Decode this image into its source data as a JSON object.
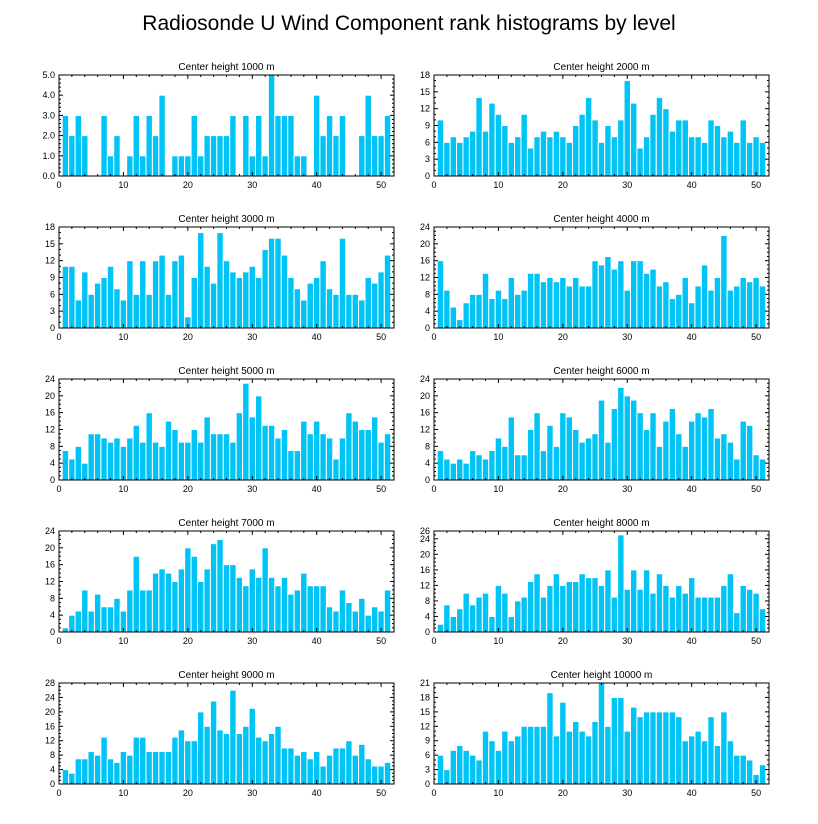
{
  "title": "Radiosonde U Wind Component rank histograms by level",
  "colors": {
    "bar": "#00c4f5",
    "bar_edge": "#ffffff",
    "axis": "#000000",
    "background": "#ffffff"
  },
  "chart_data": [
    {
      "type": "bar",
      "title": "Center height 1000 m",
      "xlim": [
        0,
        52
      ],
      "ylim": [
        0,
        5
      ],
      "xticks": [
        0,
        10,
        20,
        30,
        40,
        50
      ],
      "yticks": [
        0,
        1,
        2,
        3,
        4,
        5
      ],
      "ytick_labels": [
        "0.0",
        "1.0",
        "2.0",
        "3.0",
        "4.0",
        "5.0"
      ],
      "values": [
        3,
        2,
        3,
        2,
        0,
        0,
        3,
        1,
        2,
        0,
        1,
        3,
        1,
        3,
        2,
        4,
        0,
        1,
        1,
        1,
        3,
        1,
        2,
        2,
        2,
        2,
        3,
        0,
        3,
        1,
        3,
        1,
        5,
        3,
        3,
        3,
        1,
        1,
        0,
        4,
        2,
        3,
        2,
        3,
        0,
        0,
        2,
        4,
        2,
        2,
        3
      ]
    },
    {
      "type": "bar",
      "title": "Center height 2000 m",
      "xlim": [
        0,
        52
      ],
      "ylim": [
        0,
        18
      ],
      "xticks": [
        0,
        10,
        20,
        30,
        40,
        50
      ],
      "yticks": [
        0,
        3,
        6,
        9,
        12,
        15,
        18
      ],
      "ytick_labels": [
        "0",
        "3",
        "6",
        "9",
        "12",
        "15",
        "18"
      ],
      "values": [
        10,
        6,
        7,
        6,
        7,
        8,
        14,
        8,
        13,
        11,
        9,
        6,
        7,
        11,
        5,
        7,
        8,
        7,
        8,
        7,
        6,
        9,
        11,
        14,
        10,
        6,
        9,
        7,
        10,
        17,
        13,
        5,
        7,
        11,
        14,
        12,
        8,
        10,
        10,
        7,
        7,
        6,
        10,
        9,
        7,
        8,
        6,
        10,
        6,
        7,
        6
      ]
    },
    {
      "type": "bar",
      "title": "Center height 3000 m",
      "xlim": [
        0,
        52
      ],
      "ylim": [
        0,
        18
      ],
      "xticks": [
        0,
        10,
        20,
        30,
        40,
        50
      ],
      "yticks": [
        0,
        3,
        6,
        9,
        12,
        15,
        18
      ],
      "ytick_labels": [
        "0",
        "3",
        "6",
        "9",
        "12",
        "15",
        "18"
      ],
      "values": [
        11,
        11,
        5,
        10,
        6,
        8,
        9,
        11,
        7,
        5,
        12,
        6,
        12,
        6,
        12,
        13,
        6,
        12,
        13,
        2,
        9,
        17,
        11,
        8,
        17,
        12,
        10,
        9,
        10,
        11,
        9,
        14,
        16,
        16,
        13,
        9,
        7,
        5,
        8,
        9,
        12,
        7,
        6,
        16,
        6,
        6,
        5,
        9,
        8,
        10,
        13
      ]
    },
    {
      "type": "bar",
      "title": "Center height 4000 m",
      "xlim": [
        0,
        52
      ],
      "ylim": [
        0,
        24
      ],
      "xticks": [
        0,
        10,
        20,
        30,
        40,
        50
      ],
      "yticks": [
        0,
        4,
        8,
        12,
        16,
        20,
        24
      ],
      "ytick_labels": [
        "0",
        "4",
        "8",
        "12",
        "16",
        "20",
        "24"
      ],
      "values": [
        16,
        9,
        5,
        2,
        6,
        8,
        8,
        13,
        7,
        9,
        7,
        12,
        8,
        9,
        13,
        13,
        11,
        12,
        11,
        12,
        10,
        12,
        10,
        10,
        16,
        15,
        17,
        14,
        16,
        9,
        16,
        16,
        13,
        14,
        10,
        11,
        7,
        8,
        12,
        6,
        10,
        15,
        9,
        12,
        22,
        9,
        10,
        12,
        11,
        12,
        10
      ]
    },
    {
      "type": "bar",
      "title": "Center height 5000 m",
      "xlim": [
        0,
        52
      ],
      "ylim": [
        0,
        24
      ],
      "xticks": [
        0,
        10,
        20,
        30,
        40,
        50
      ],
      "yticks": [
        0,
        4,
        8,
        12,
        16,
        20,
        24
      ],
      "ytick_labels": [
        "0",
        "4",
        "8",
        "12",
        "16",
        "20",
        "24"
      ],
      "values": [
        7,
        5,
        8,
        4,
        11,
        11,
        10,
        9,
        10,
        8,
        10,
        13,
        9,
        16,
        9,
        8,
        14,
        12,
        9,
        9,
        12,
        9,
        15,
        11,
        11,
        11,
        9,
        16,
        23,
        15,
        20,
        13,
        13,
        10,
        12,
        7,
        7,
        14,
        11,
        14,
        11,
        10,
        5,
        10,
        16,
        14,
        12,
        12,
        15,
        9,
        11
      ]
    },
    {
      "type": "bar",
      "title": "Center height 6000 m",
      "xlim": [
        0,
        52
      ],
      "ylim": [
        0,
        24
      ],
      "xticks": [
        0,
        10,
        20,
        30,
        40,
        50
      ],
      "yticks": [
        0,
        4,
        8,
        12,
        16,
        20,
        24
      ],
      "ytick_labels": [
        "0",
        "4",
        "8",
        "12",
        "16",
        "20",
        "24"
      ],
      "values": [
        7,
        5,
        4,
        5,
        4,
        7,
        6,
        5,
        7,
        10,
        8,
        15,
        6,
        6,
        12,
        16,
        7,
        13,
        8,
        16,
        15,
        12,
        9,
        10,
        11,
        19,
        9,
        17,
        22,
        20,
        19,
        16,
        12,
        16,
        8,
        14,
        17,
        11,
        8,
        14,
        16,
        15,
        17,
        10,
        11,
        9,
        5,
        14,
        13,
        6,
        5
      ]
    },
    {
      "type": "bar",
      "title": "Center height 7000 m",
      "xlim": [
        0,
        52
      ],
      "ylim": [
        0,
        24
      ],
      "xticks": [
        0,
        10,
        20,
        30,
        40,
        50
      ],
      "yticks": [
        0,
        4,
        8,
        12,
        16,
        20,
        24
      ],
      "ytick_labels": [
        "0",
        "4",
        "8",
        "12",
        "16",
        "20",
        "24"
      ],
      "values": [
        1,
        4,
        5,
        10,
        5,
        9,
        6,
        6,
        8,
        5,
        10,
        18,
        10,
        10,
        14,
        15,
        14,
        12,
        15,
        20,
        18,
        12,
        15,
        21,
        22,
        16,
        16,
        13,
        11,
        15,
        13,
        20,
        13,
        11,
        13,
        9,
        10,
        14,
        11,
        11,
        11,
        6,
        5,
        10,
        7,
        5,
        8,
        4,
        6,
        5,
        10
      ]
    },
    {
      "type": "bar",
      "title": "Center height 8000 m",
      "xlim": [
        0,
        52
      ],
      "ylim": [
        0,
        26
      ],
      "xticks": [
        0,
        10,
        20,
        30,
        40,
        50
      ],
      "yticks": [
        0,
        4,
        8,
        12,
        16,
        20,
        24,
        26
      ],
      "ytick_labels": [
        "0",
        "4",
        "8",
        "12",
        "16",
        "20",
        "24",
        "26"
      ],
      "values": [
        2,
        7,
        4,
        6,
        10,
        7,
        9,
        10,
        4,
        12,
        10,
        4,
        8,
        9,
        13,
        15,
        9,
        12,
        15,
        12,
        13,
        13,
        15,
        14,
        14,
        12,
        16,
        9,
        25,
        11,
        16,
        11,
        16,
        10,
        15,
        12,
        9,
        12,
        10,
        14,
        9,
        9,
        9,
        9,
        12,
        15,
        5,
        12,
        11,
        10,
        6
      ]
    },
    {
      "type": "bar",
      "title": "Center height 9000 m",
      "xlim": [
        0,
        52
      ],
      "ylim": [
        0,
        28
      ],
      "xticks": [
        0,
        10,
        20,
        30,
        40,
        50
      ],
      "yticks": [
        0,
        4,
        8,
        12,
        16,
        20,
        24,
        28
      ],
      "ytick_labels": [
        "0",
        "4",
        "8",
        "12",
        "16",
        "20",
        "24",
        "28"
      ],
      "values": [
        4,
        3,
        7,
        7,
        9,
        8,
        13,
        7,
        6,
        9,
        8,
        13,
        13,
        9,
        9,
        9,
        9,
        13,
        15,
        12,
        12,
        20,
        16,
        23,
        15,
        14,
        26,
        14,
        16,
        21,
        13,
        12,
        14,
        16,
        10,
        10,
        8,
        9,
        7,
        9,
        5,
        8,
        10,
        10,
        12,
        8,
        11,
        7,
        5,
        5,
        6
      ]
    },
    {
      "type": "bar",
      "title": "Center height 10000 m",
      "xlim": [
        0,
        52
      ],
      "ylim": [
        0,
        21
      ],
      "xticks": [
        0,
        10,
        20,
        30,
        40,
        50
      ],
      "yticks": [
        0,
        3,
        6,
        9,
        12,
        15,
        18,
        21
      ],
      "ytick_labels": [
        "0",
        "3",
        "6",
        "9",
        "12",
        "15",
        "18",
        "21"
      ],
      "values": [
        6,
        3,
        7,
        8,
        7,
        6,
        5,
        11,
        9,
        7,
        11,
        9,
        10,
        12,
        12,
        12,
        12,
        19,
        10,
        17,
        11,
        13,
        11,
        10,
        13,
        21,
        12,
        18,
        18,
        11,
        16,
        14,
        15,
        15,
        15,
        15,
        15,
        14,
        9,
        10,
        11,
        9,
        14,
        8,
        15,
        9,
        6,
        6,
        5,
        2,
        4
      ]
    }
  ]
}
